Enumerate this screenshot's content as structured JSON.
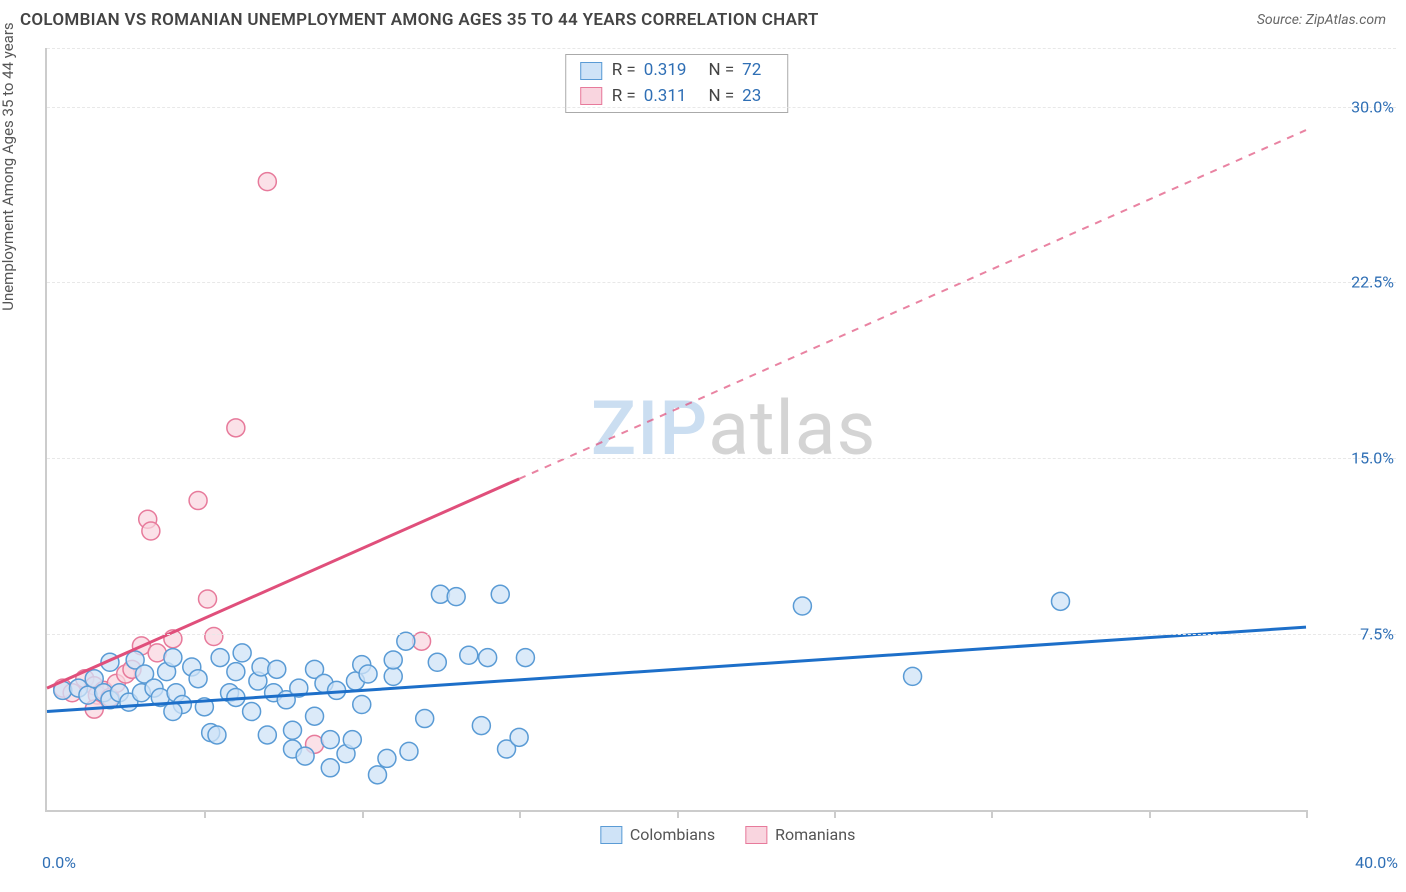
{
  "header": {
    "title": "COLOMBIAN VS ROMANIAN UNEMPLOYMENT AMONG AGES 35 TO 44 YEARS CORRELATION CHART",
    "source_prefix": "Source: ",
    "source_link": "ZipAtlas.com"
  },
  "axes": {
    "y_label": "Unemployment Among Ages 35 to 44 years",
    "x_min": 0.0,
    "x_max": 40.0,
    "y_min": 0.0,
    "y_max": 32.5,
    "x_origin_label": "0.0%",
    "x_max_label": "40.0%",
    "y_ticks": [
      7.5,
      15.0,
      22.5,
      30.0
    ],
    "y_tick_labels": [
      "7.5%",
      "15.0%",
      "22.5%",
      "30.0%"
    ],
    "x_ticks": [
      5,
      10,
      15,
      20,
      25,
      30,
      35,
      40
    ],
    "grid_color": "#e8e8e8",
    "axis_color": "#cccccc",
    "label_color": "#2f6fb5"
  },
  "watermark": {
    "text1": "ZIP",
    "text2": "atlas"
  },
  "series": {
    "colombians": {
      "label": "Colombians",
      "fill": "#cfe3f7",
      "stroke": "#5a9bd5",
      "marker_radius": 9,
      "marker_opacity": 0.75,
      "line_color": "#1d6fc9",
      "line_width": 3,
      "line_dash": "none",
      "trend_start": [
        0.0,
        4.2
      ],
      "trend_end": [
        40.0,
        7.8
      ],
      "R": "0.319",
      "N": "72",
      "points": [
        [
          0.5,
          5.1
        ],
        [
          1.0,
          5.2
        ],
        [
          1.3,
          4.9
        ],
        [
          1.5,
          5.6
        ],
        [
          1.8,
          5.0
        ],
        [
          2.0,
          4.7
        ],
        [
          2.0,
          6.3
        ],
        [
          2.3,
          5.0
        ],
        [
          2.6,
          4.6
        ],
        [
          2.8,
          6.4
        ],
        [
          3.0,
          5.0
        ],
        [
          3.1,
          5.8
        ],
        [
          3.4,
          5.2
        ],
        [
          3.6,
          4.8
        ],
        [
          3.8,
          5.9
        ],
        [
          4.0,
          6.5
        ],
        [
          4.1,
          5.0
        ],
        [
          4.3,
          4.5
        ],
        [
          4.6,
          6.1
        ],
        [
          4.8,
          5.6
        ],
        [
          5.0,
          4.4
        ],
        [
          5.2,
          3.3
        ],
        [
          5.4,
          3.2
        ],
        [
          5.5,
          6.5
        ],
        [
          5.8,
          5.0
        ],
        [
          6.0,
          5.9
        ],
        [
          6.2,
          6.7
        ],
        [
          6.5,
          4.2
        ],
        [
          6.7,
          5.5
        ],
        [
          6.8,
          6.1
        ],
        [
          7.0,
          3.2
        ],
        [
          7.2,
          5.0
        ],
        [
          7.3,
          6.0
        ],
        [
          7.6,
          4.7
        ],
        [
          7.8,
          3.4
        ],
        [
          7.8,
          2.6
        ],
        [
          8.0,
          5.2
        ],
        [
          8.2,
          2.3
        ],
        [
          8.5,
          6.0
        ],
        [
          8.8,
          5.4
        ],
        [
          9.0,
          3.0
        ],
        [
          9.0,
          1.8
        ],
        [
          9.2,
          5.1
        ],
        [
          9.5,
          2.4
        ],
        [
          9.7,
          3.0
        ],
        [
          9.8,
          5.5
        ],
        [
          10.0,
          4.5
        ],
        [
          10.0,
          6.2
        ],
        [
          10.2,
          5.8
        ],
        [
          10.5,
          1.5
        ],
        [
          10.8,
          2.2
        ],
        [
          11.0,
          5.7
        ],
        [
          11.0,
          6.4
        ],
        [
          11.4,
          7.2
        ],
        [
          11.5,
          2.5
        ],
        [
          12.0,
          3.9
        ],
        [
          12.4,
          6.3
        ],
        [
          12.5,
          9.2
        ],
        [
          13.0,
          9.1
        ],
        [
          13.4,
          6.6
        ],
        [
          13.8,
          3.6
        ],
        [
          14.0,
          6.5
        ],
        [
          14.4,
          9.2
        ],
        [
          14.6,
          2.6
        ],
        [
          15.0,
          3.1
        ],
        [
          15.2,
          6.5
        ],
        [
          24.0,
          8.7
        ],
        [
          27.5,
          5.7
        ],
        [
          32.2,
          8.9
        ],
        [
          4.0,
          4.2
        ],
        [
          6.0,
          4.8
        ],
        [
          8.5,
          4.0
        ]
      ]
    },
    "romanians": {
      "label": "Romanians",
      "fill": "#f9d5df",
      "stroke": "#e77a9b",
      "marker_radius": 9,
      "marker_opacity": 0.72,
      "line_color": "#e04f7b",
      "line_width": 3,
      "line_dash_solid_until_x": 15.0,
      "trend_start": [
        0.0,
        5.2
      ],
      "trend_end": [
        40.0,
        29.0
      ],
      "R": "0.311",
      "N": "23",
      "points": [
        [
          0.5,
          5.2
        ],
        [
          0.8,
          5.0
        ],
        [
          1.2,
          5.6
        ],
        [
          1.5,
          5.3
        ],
        [
          1.6,
          4.9
        ],
        [
          1.8,
          5.1
        ],
        [
          2.0,
          4.8
        ],
        [
          2.2,
          5.4
        ],
        [
          2.5,
          5.8
        ],
        [
          2.7,
          6.0
        ],
        [
          3.0,
          7.0
        ],
        [
          1.5,
          4.3
        ],
        [
          3.2,
          12.4
        ],
        [
          3.3,
          11.9
        ],
        [
          3.5,
          6.7
        ],
        [
          4.0,
          7.3
        ],
        [
          4.8,
          13.2
        ],
        [
          5.1,
          9.0
        ],
        [
          5.3,
          7.4
        ],
        [
          6.0,
          16.3
        ],
        [
          7.0,
          26.8
        ],
        [
          8.5,
          2.8
        ],
        [
          11.9,
          7.2
        ]
      ]
    }
  },
  "stat_legend": {
    "r_label": "R =",
    "n_label": "N ="
  },
  "bottom_legend": {
    "items": [
      "colombians",
      "romanians"
    ]
  }
}
